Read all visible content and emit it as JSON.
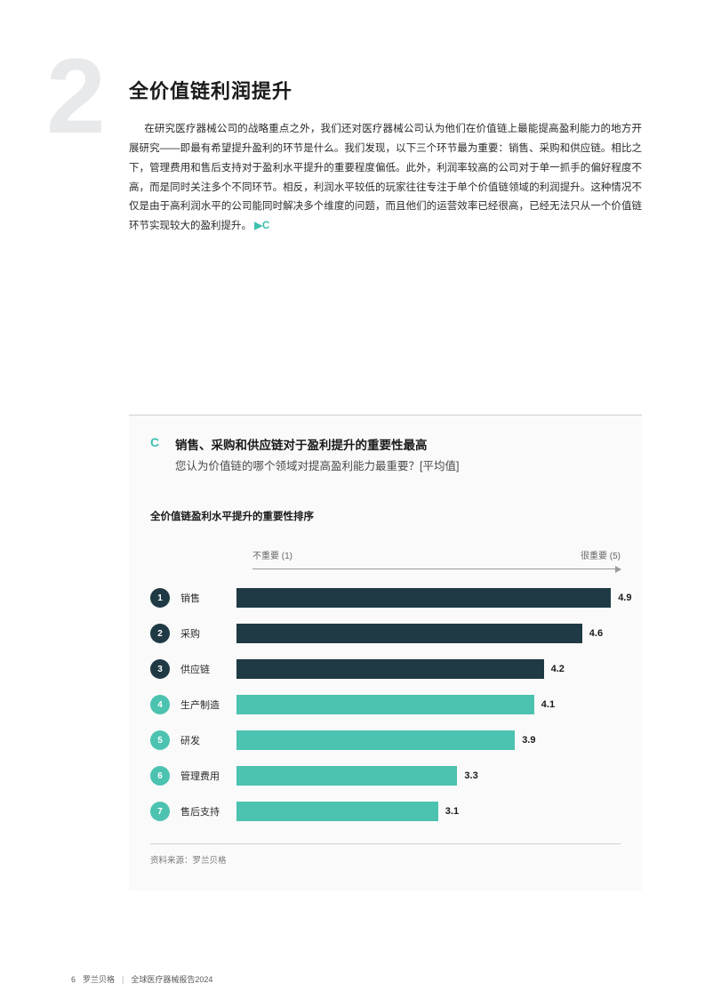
{
  "section_number": "2",
  "title": "全价值链利润提升",
  "body_paragraph": "在研究医疗器械公司的战略重点之外，我们还对医疗器械公司认为他们在价值链上最能提高盈利能力的地方开展研究——即最有希望提升盈利的环节是什么。我们发现，以下三个环节最为重要：销售、采购和供应链。相比之下，管理费用和售后支持对于盈利水平提升的重要程度偏低。此外，利润率较高的公司对于单一抓手的偏好程度不高，而是同时关注多个不同环节。相反，利润水平较低的玩家往往专注于单个价值链领域的利润提升。这种情况不仅是由于高利润水平的公司能同时解决多个维度的问题，而且他们的运营效率已经很高，已经无法只从一个价值链环节实现较大的盈利提升。",
  "inline_ref": "▶C",
  "exhibit": {
    "marker": "C",
    "title": "销售、采购和供应链对于盈利提升的重要性最高",
    "subtitle": "您认为价值链的哪个领域对提高盈利能力最重要？[平均值]",
    "chart_subtitle": "全价值链盈利水平提升的重要性排序",
    "scale_low_label": "不重要 (1)",
    "scale_high_label": "很重要 (5)",
    "source_label": "资料来源：罗兰贝格",
    "colors": {
      "dark": "#1f3a44",
      "teal": "#4cc2b0",
      "text": "#1a1a1a",
      "grid": "#cfcfcf",
      "bg": "#fafafa"
    },
    "scale_min": 1,
    "scale_max": 5,
    "items": [
      {
        "rank": "1",
        "label": "销售",
        "value": 4.9,
        "color_key": "dark"
      },
      {
        "rank": "2",
        "label": "采购",
        "value": 4.6,
        "color_key": "dark"
      },
      {
        "rank": "3",
        "label": "供应链",
        "value": 4.2,
        "color_key": "dark"
      },
      {
        "rank": "4",
        "label": "生产制造",
        "value": 4.1,
        "color_key": "teal"
      },
      {
        "rank": "5",
        "label": "研发",
        "value": 3.9,
        "color_key": "teal"
      },
      {
        "rank": "6",
        "label": "管理费用",
        "value": 3.3,
        "color_key": "teal"
      },
      {
        "rank": "7",
        "label": "售后支持",
        "value": 3.1,
        "color_key": "teal"
      }
    ]
  },
  "footer": {
    "page": "6",
    "brand": "罗兰贝格",
    "doc": "全球医疗器械报告2024"
  }
}
